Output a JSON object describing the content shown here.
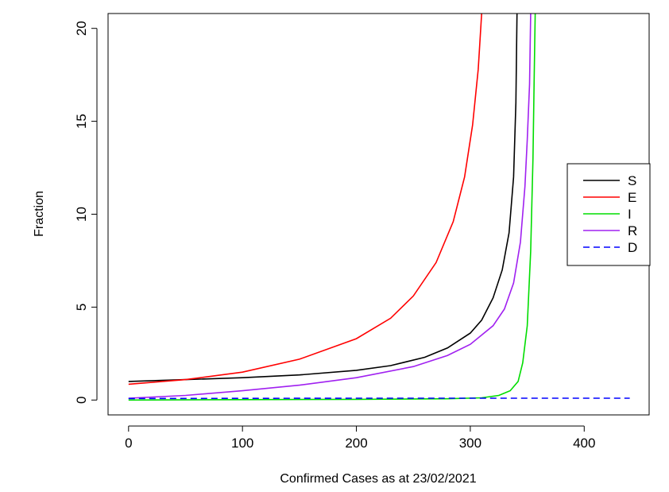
{
  "chart_data": {
    "type": "line",
    "title": "",
    "xlabel": "Confirmed Cases as at 23/02/2021",
    "ylabel": "Fraction",
    "xlim": [
      -18,
      457
    ],
    "ylim": [
      -0.8,
      20.8
    ],
    "x_ticks": [
      0,
      100,
      200,
      300,
      400
    ],
    "y_ticks": [
      0,
      5,
      10,
      15,
      20
    ],
    "grid": false,
    "legend_position": "right",
    "series": [
      {
        "name": "S",
        "color": "#000000",
        "dash": "solid",
        "points": [
          [
            0,
            1.0
          ],
          [
            50,
            1.1
          ],
          [
            100,
            1.2
          ],
          [
            150,
            1.35
          ],
          [
            200,
            1.6
          ],
          [
            230,
            1.85
          ],
          [
            260,
            2.3
          ],
          [
            280,
            2.8
          ],
          [
            300,
            3.6
          ],
          [
            310,
            4.3
          ],
          [
            320,
            5.5
          ],
          [
            328,
            7.0
          ],
          [
            334,
            9.0
          ],
          [
            338,
            12.0
          ],
          [
            340,
            16.0
          ],
          [
            341,
            20.8
          ]
        ]
      },
      {
        "name": "E",
        "color": "#ff0000",
        "dash": "solid",
        "points": [
          [
            0,
            0.85
          ],
          [
            50,
            1.1
          ],
          [
            100,
            1.5
          ],
          [
            150,
            2.2
          ],
          [
            200,
            3.3
          ],
          [
            230,
            4.4
          ],
          [
            250,
            5.6
          ],
          [
            270,
            7.4
          ],
          [
            285,
            9.6
          ],
          [
            295,
            12.0
          ],
          [
            302,
            14.8
          ],
          [
            307,
            17.8
          ],
          [
            310,
            20.8
          ]
        ]
      },
      {
        "name": "I",
        "color": "#00dd00",
        "dash": "solid",
        "points": [
          [
            0,
            0.0
          ],
          [
            100,
            0.02
          ],
          [
            200,
            0.04
          ],
          [
            280,
            0.07
          ],
          [
            310,
            0.12
          ],
          [
            325,
            0.25
          ],
          [
            335,
            0.5
          ],
          [
            342,
            1.0
          ],
          [
            346,
            2.0
          ],
          [
            350,
            4.0
          ],
          [
            353,
            8.0
          ],
          [
            355,
            13.0
          ],
          [
            356,
            17.0
          ],
          [
            357,
            20.8
          ]
        ]
      },
      {
        "name": "R",
        "color": "#a020f0",
        "dash": "solid",
        "points": [
          [
            0,
            0.1
          ],
          [
            50,
            0.25
          ],
          [
            100,
            0.5
          ],
          [
            150,
            0.8
          ],
          [
            200,
            1.2
          ],
          [
            250,
            1.8
          ],
          [
            280,
            2.4
          ],
          [
            300,
            3.0
          ],
          [
            320,
            4.0
          ],
          [
            330,
            4.9
          ],
          [
            338,
            6.3
          ],
          [
            344,
            8.5
          ],
          [
            348,
            11.5
          ],
          [
            350,
            14.0
          ],
          [
            352,
            17.0
          ],
          [
            353,
            20.8
          ]
        ]
      },
      {
        "name": "D",
        "color": "#0000ff",
        "dash": "dashed",
        "points": [
          [
            0,
            0.08
          ],
          [
            100,
            0.09
          ],
          [
            200,
            0.1
          ],
          [
            300,
            0.1
          ],
          [
            440,
            0.1
          ]
        ]
      }
    ]
  }
}
